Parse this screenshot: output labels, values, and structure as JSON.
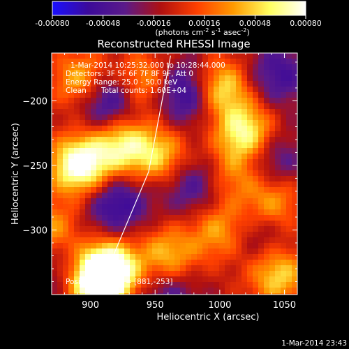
{
  "chart_data": {
    "type": "heatmap",
    "title": "Reconstructed RHESSI Image",
    "xlabel": "Heliocentric X (arcsec)",
    "ylabel": "Heliocentric Y (arcsec)",
    "xlim": [
      870,
      1060
    ],
    "ylim": [
      -350,
      -163
    ],
    "xticks": [
      900,
      950,
      1000,
      1050
    ],
    "yticks": [
      -200,
      -250,
      -300
    ],
    "colorbar": {
      "range": [
        -0.0008,
        0.0008
      ],
      "ticks": [
        "-0.00080",
        "-0.00048",
        "-0.00016",
        "0.00016",
        "0.00048",
        "0.00080"
      ],
      "unit_label": "(photons cm",
      "unit_exp1": "-2",
      "unit_mid": " s",
      "unit_exp2": "-1",
      "unit_end": " asec",
      "unit_exp3": "-2",
      "unit_close": ")",
      "colors": [
        "#1a10ff",
        "#3c0a9a",
        "#5a1a8a",
        "#b01010",
        "#ff4000",
        "#ff9a00",
        "#ffff60",
        "#ffffff"
      ]
    },
    "annotations": {
      "time_range": "1-Mar-2014 10:25:32.000 to 10:28:44.000",
      "detectors": "Detectors: 3F 5F 6F 7F 8F 9F, Att 0",
      "energy": "Energy Range: 25.0 - 50.0 keV",
      "algorithm": "Clean",
      "total_counts": "Total counts: 1.60E+04",
      "peak": "Position of Peak = [881,-253]"
    },
    "sources": [
      {
        "x": 892,
        "y": -250,
        "intensity": 1.0
      },
      {
        "x": 905,
        "y": -340,
        "intensity": 1.0
      },
      {
        "x": 915,
        "y": -330,
        "intensity": 0.85
      },
      {
        "x": 925,
        "y": -235,
        "intensity": 0.7
      },
      {
        "x": 955,
        "y": -243,
        "intensity": 0.55
      },
      {
        "x": 895,
        "y": -185,
        "intensity": 0.7
      },
      {
        "x": 940,
        "y": -185,
        "intensity": 0.55
      },
      {
        "x": 1000,
        "y": -190,
        "intensity": 0.75
      },
      {
        "x": 1020,
        "y": -225,
        "intensity": 0.8
      },
      {
        "x": 1040,
        "y": -280,
        "intensity": 0.55
      },
      {
        "x": 1000,
        "y": -300,
        "intensity": 0.5
      },
      {
        "x": 960,
        "y": -320,
        "intensity": 0.55
      },
      {
        "x": 1045,
        "y": -335,
        "intensity": 0.6
      },
      {
        "x": 1010,
        "y": -258,
        "intensity": 0.4
      },
      {
        "x": 870,
        "y": -300,
        "intensity": 0.45
      }
    ],
    "negatives": [
      {
        "x": 912,
        "y": -197,
        "intensity": 1.0
      },
      {
        "x": 975,
        "y": -193,
        "intensity": 0.9
      },
      {
        "x": 1045,
        "y": -180,
        "intensity": 0.6
      },
      {
        "x": 920,
        "y": -280,
        "intensity": 0.75
      },
      {
        "x": 980,
        "y": -265,
        "intensity": 0.6
      },
      {
        "x": 1040,
        "y": -245,
        "intensity": 0.55
      },
      {
        "x": 1030,
        "y": -300,
        "intensity": 0.45
      },
      {
        "x": 960,
        "y": -350,
        "intensity": 0.5
      },
      {
        "x": 880,
        "y": -330,
        "intensity": 0.4
      }
    ],
    "limb_line": [
      [
        905,
        -350
      ],
      [
        945,
        -255
      ],
      [
        962,
        -165
      ]
    ]
  },
  "footer": {
    "timestamp": "1-Mar-2014 23:43"
  }
}
